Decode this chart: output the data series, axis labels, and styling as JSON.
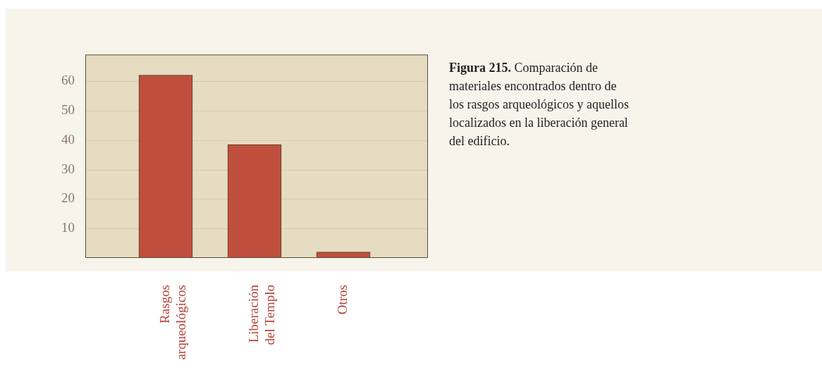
{
  "chart_data": {
    "type": "bar",
    "categories": [
      "Rasgos arqueológicos",
      "Liberación del Templo",
      "Otros"
    ],
    "values": [
      62,
      38.5,
      2
    ],
    "color": "#c04e3c",
    "ylim": [
      0,
      69
    ],
    "yticks": [
      10,
      20,
      30,
      40,
      50,
      60
    ],
    "grid": "y",
    "legend": false,
    "annotations": [
      "Figura 215.",
      "Comparación de materiales encontrados dentro de los rasgos arqueológicos y aquellos localizados en la liberación general del edificio."
    ]
  }
}
